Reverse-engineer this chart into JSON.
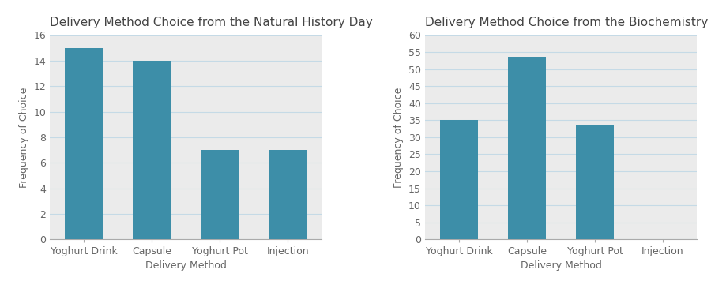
{
  "chart1": {
    "title": "Delivery Method Choice from the Natural History Day",
    "categories": [
      "Yoghurt Drink",
      "Capsule",
      "Yoghurt Pot",
      "Injection"
    ],
    "values": [
      15,
      14,
      7,
      7
    ],
    "ylabel": "Frequency of Choice",
    "xlabel": "Delivery Method",
    "ylim": [
      0,
      16
    ],
    "yticks": [
      0,
      2,
      4,
      6,
      8,
      10,
      12,
      14,
      16
    ]
  },
  "chart2": {
    "title": "Delivery Method Choice from the Biochemistry Department",
    "categories": [
      "Yoghurt Drink",
      "Capsule",
      "Yoghurt Pot",
      "Injection"
    ],
    "values": [
      35,
      53.5,
      33.5,
      0
    ],
    "ylabel": "Frequency of Choice",
    "xlabel": "Delivery Method",
    "ylim": [
      0,
      60
    ],
    "yticks": [
      0,
      5,
      10,
      15,
      20,
      25,
      30,
      35,
      40,
      45,
      50,
      55,
      60
    ]
  },
  "bar_color": "#3d8ea8",
  "plot_bg_color": "#ebebeb",
  "grid_color": "#c5dae6",
  "title_fontsize": 11,
  "label_fontsize": 9,
  "tick_fontsize": 9,
  "title_color": "#444444",
  "label_color": "#666666"
}
